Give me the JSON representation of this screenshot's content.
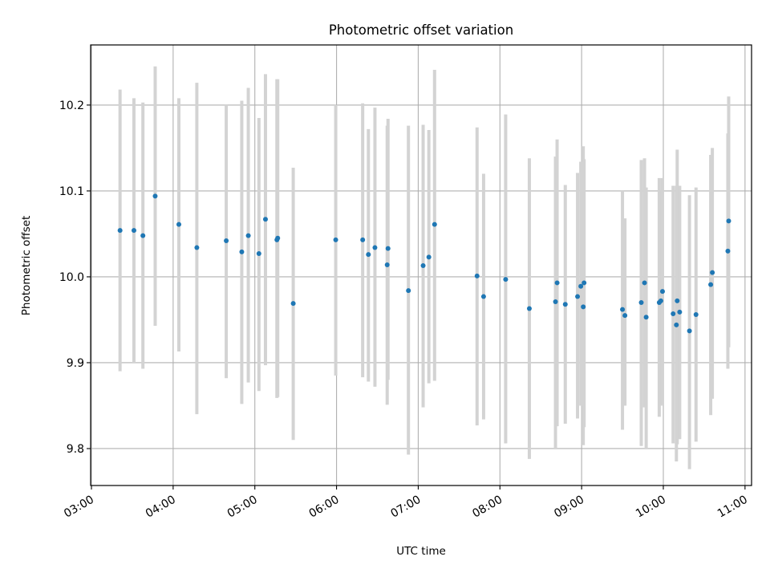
{
  "chart_data": {
    "type": "scatter",
    "title": "Photometric offset variation",
    "xlabel": "UTC time",
    "ylabel": "Photometric offset",
    "x_tick_labels": [
      "03:00",
      "04:00",
      "05:00",
      "06:00",
      "07:00",
      "08:00",
      "09:00",
      "10:00",
      "11:00"
    ],
    "x_tick_hours": [
      3,
      4,
      5,
      6,
      7,
      8,
      9,
      10,
      11
    ],
    "y_tick_labels": [
      "9.8",
      "9.9",
      "10.0",
      "10.1",
      "10.2"
    ],
    "y_tick_values": [
      9.8,
      9.9,
      10.0,
      10.1,
      10.2
    ],
    "xlim_hours": [
      2.99,
      11.08
    ],
    "ylim": [
      9.757,
      10.27
    ],
    "grid": true,
    "marker_color": "#1f77b4",
    "errorbar_color": "#d3d3d3",
    "x_hours": [
      3.35,
      3.52,
      3.63,
      3.78,
      4.07,
      4.29,
      4.65,
      4.84,
      4.92,
      5.05,
      5.13,
      5.27,
      5.28,
      5.47,
      5.99,
      6.32,
      6.39,
      6.47,
      6.62,
      6.63,
      6.88,
      7.06,
      7.13,
      7.2,
      7.72,
      7.8,
      8.07,
      8.36,
      8.68,
      8.7,
      8.8,
      8.95,
      8.99,
      9.02,
      9.03,
      9.5,
      9.53,
      9.73,
      9.77,
      9.79,
      9.95,
      9.97,
      9.99,
      10.12,
      10.16,
      10.17,
      10.2,
      10.32,
      10.4,
      10.58,
      10.6,
      10.79,
      10.8
    ],
    "y": [
      10.054,
      10.054,
      10.048,
      10.094,
      10.061,
      10.034,
      10.042,
      10.029,
      10.048,
      10.027,
      10.067,
      10.043,
      10.045,
      9.969,
      10.043,
      10.043,
      10.026,
      10.034,
      10.014,
      10.033,
      9.984,
      10.013,
      10.023,
      10.061,
      10.001,
      9.977,
      9.997,
      9.963,
      9.971,
      9.993,
      9.968,
      9.977,
      9.989,
      9.965,
      9.993,
      9.962,
      9.955,
      9.97,
      9.993,
      9.953,
      9.97,
      9.972,
      9.983,
      9.957,
      9.944,
      9.972,
      9.959,
      9.937,
      9.956,
      9.991,
      10.005,
      10.03,
      10.065
    ],
    "y_lower": [
      9.89,
      9.9,
      9.893,
      9.943,
      9.913,
      9.84,
      9.882,
      9.852,
      9.877,
      9.867,
      9.897,
      9.859,
      9.86,
      9.81,
      9.885,
      9.883,
      9.878,
      9.872,
      9.851,
      9.88,
      9.793,
      9.848,
      9.876,
      9.879,
      9.827,
      9.834,
      9.806,
      9.788,
      9.8,
      9.826,
      9.829,
      9.835,
      9.85,
      9.804,
      9.825,
      9.822,
      9.85,
      9.803,
      9.848,
      9.8,
      9.837,
      9.85,
      9.852,
      9.806,
      9.785,
      9.805,
      9.811,
      9.776,
      9.808,
      9.839,
      9.858,
      9.893,
      9.918
    ],
    "y_upper": [
      10.218,
      10.208,
      10.203,
      10.245,
      10.208,
      10.226,
      10.2,
      10.205,
      10.22,
      10.185,
      10.236,
      10.23,
      10.23,
      10.127,
      10.2,
      10.202,
      10.172,
      10.197,
      10.176,
      10.184,
      10.176,
      10.177,
      10.171,
      10.241,
      10.174,
      10.12,
      10.189,
      10.138,
      10.14,
      10.16,
      10.107,
      10.121,
      10.134,
      10.152,
      10.137,
      10.1,
      10.068,
      10.136,
      10.138,
      10.104,
      10.115,
      10.1,
      10.115,
      10.106,
      10.106,
      10.148,
      10.106,
      10.095,
      10.104,
      10.142,
      10.15,
      10.167,
      10.21
    ]
  }
}
